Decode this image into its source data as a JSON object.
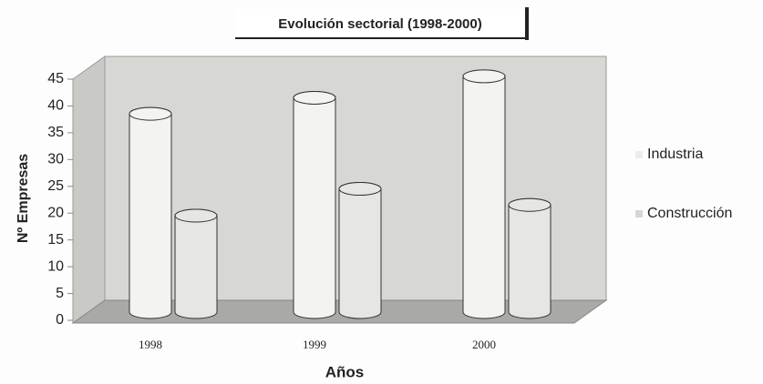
{
  "chart_data": {
    "type": "bar",
    "title": "Evolución sectorial (1998-2000)",
    "x_label": "Años",
    "y_label": "Nº Empresas",
    "categories": [
      "1998",
      "1999",
      "2000"
    ],
    "series": [
      {
        "name": "Industria",
        "color": "#f3f3ef",
        "values": [
          37,
          40,
          44
        ]
      },
      {
        "name": "Construcción",
        "color": "#e6e6e2",
        "values": [
          18,
          23,
          20
        ]
      }
    ],
    "ylim": [
      0,
      45
    ],
    "yticks": [
      0,
      5,
      10,
      15,
      20,
      25,
      30,
      35,
      40,
      45
    ],
    "legend": "right"
  }
}
